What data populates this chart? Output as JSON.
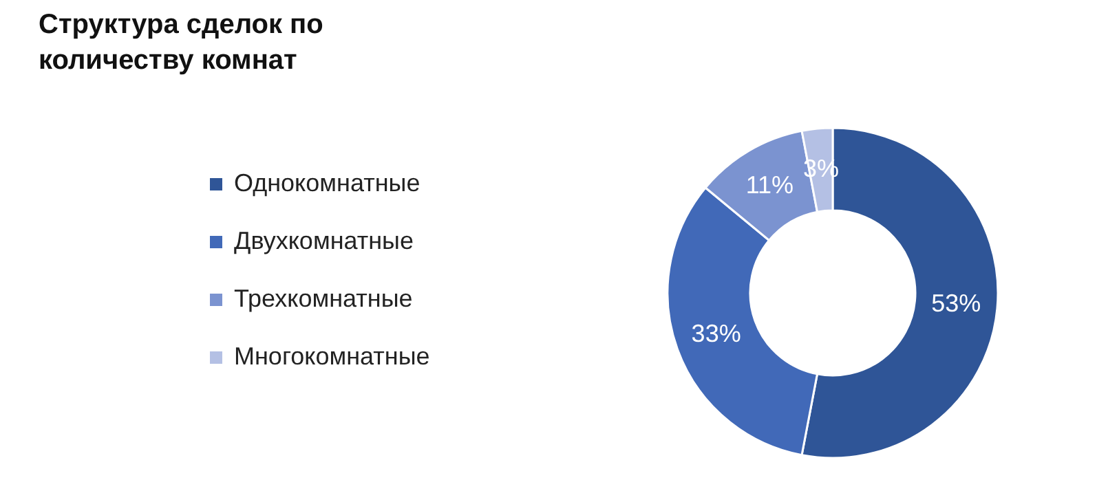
{
  "chart_data": {
    "type": "donut",
    "title": "Структура сделок по количеству комнат",
    "categories": [
      "Однокомнатные",
      "Двухкомнатные",
      "Трехкомнатные",
      "Многокомнатные"
    ],
    "values": [
      53,
      33,
      11,
      3
    ],
    "value_labels": [
      "53%",
      "33%",
      "11%",
      "3%"
    ],
    "colors": [
      "#2f5597",
      "#4169b8",
      "#7b93d0",
      "#b4c0e4"
    ],
    "legend": "left"
  }
}
